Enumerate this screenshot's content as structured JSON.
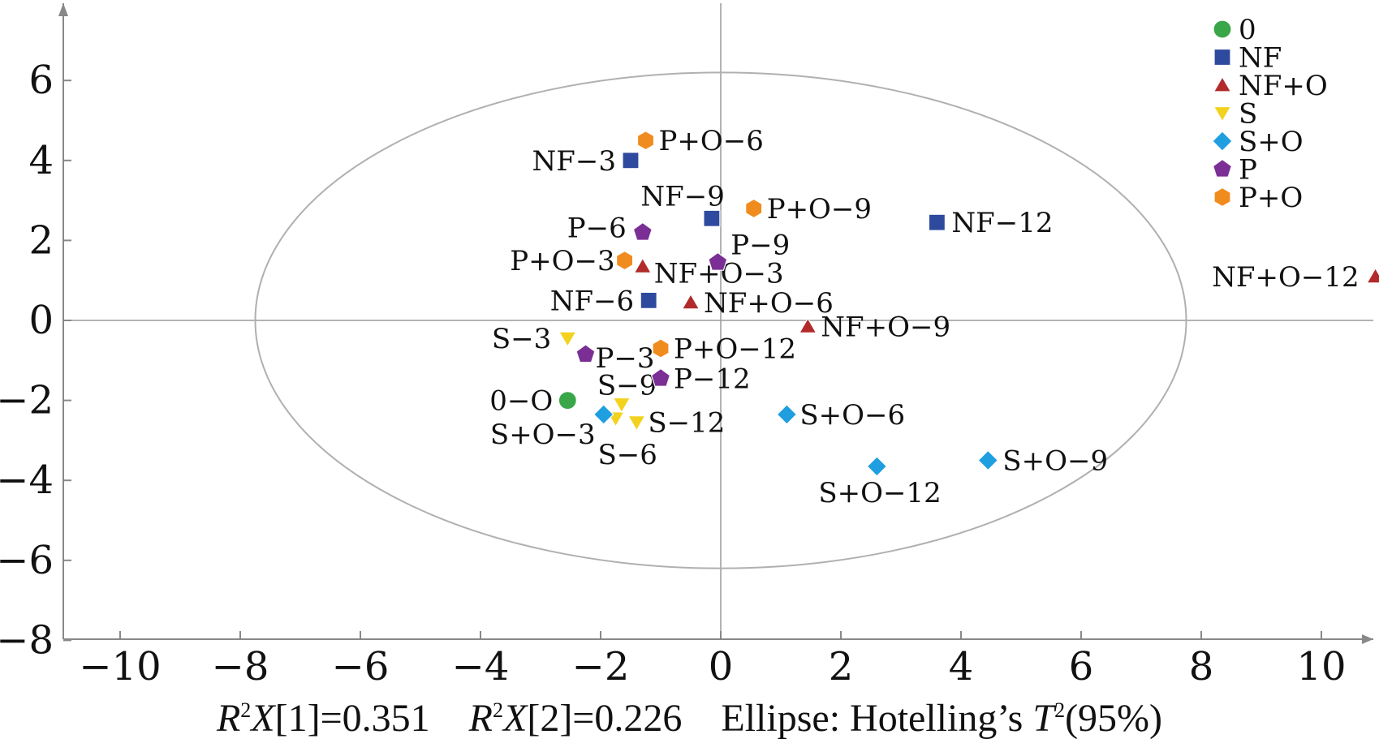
{
  "chart_data": {
    "type": "scatter",
    "x_ticks": [
      "−10",
      "−8",
      "−6",
      "−4",
      "−2",
      "0",
      "2",
      "4",
      "6",
      "8",
      "10"
    ],
    "y_ticks": [
      "6",
      "4",
      "2",
      "0",
      "−2",
      "−4",
      "−6",
      "−8"
    ],
    "xlim": [
      -11,
      11
    ],
    "ylim": [
      -8,
      8
    ],
    "ellipse": {
      "rx": 7.75,
      "ry": 6.2
    },
    "series": [
      {
        "name": "0",
        "marker": "circle",
        "color": "#3aa64a",
        "points": [
          {
            "label": "0−O",
            "x": -2.55,
            "y": -2.0
          }
        ]
      },
      {
        "name": "NF",
        "marker": "square",
        "color": "#2e4a9e",
        "points": [
          {
            "label": "NF−3",
            "x": -1.5,
            "y": 4.0
          },
          {
            "label": "NF−6",
            "x": -1.2,
            "y": 0.5
          },
          {
            "label": "NF−9",
            "x": -0.15,
            "y": 2.55
          },
          {
            "label": "NF−12",
            "x": 3.6,
            "y": 2.45
          }
        ]
      },
      {
        "name": "NF+O",
        "marker": "triangle-up",
        "color": "#b22a2a",
        "points": [
          {
            "label": "NF+O−3",
            "x": -1.3,
            "y": 1.35
          },
          {
            "label": "NF+O−6",
            "x": -0.5,
            "y": 0.45
          },
          {
            "label": "NF+O−9",
            "x": 1.45,
            "y": -0.15
          },
          {
            "label": "NF+O−12",
            "x": 10.9,
            "y": 1.1
          }
        ]
      },
      {
        "name": "S",
        "marker": "triangle-down",
        "color": "#f2d21e",
        "points": [
          {
            "label": "S−3",
            "x": -2.55,
            "y": -0.45
          },
          {
            "label": "S−6",
            "x": -1.75,
            "y": -2.45
          },
          {
            "label": "S−9",
            "x": -1.65,
            "y": -2.1
          },
          {
            "label": "S−12",
            "x": -1.4,
            "y": -2.55
          }
        ]
      },
      {
        "name": "S+O",
        "marker": "diamond",
        "color": "#1f9ee0",
        "points": [
          {
            "label": "S+O−3",
            "x": -1.95,
            "y": -2.35
          },
          {
            "label": "S+O−6",
            "x": 1.1,
            "y": -2.35
          },
          {
            "label": "S+O−9",
            "x": 4.45,
            "y": -3.5
          },
          {
            "label": "S+O−12",
            "x": 2.6,
            "y": -3.65
          }
        ]
      },
      {
        "name": "P",
        "marker": "pentagon",
        "color": "#7b2f95",
        "points": [
          {
            "label": "P−3",
            "x": -2.25,
            "y": -0.85
          },
          {
            "label": "P−6",
            "x": -1.3,
            "y": 2.2
          },
          {
            "label": "P−9",
            "x": -0.05,
            "y": 1.45
          },
          {
            "label": "P−12",
            "x": -1.0,
            "y": -1.45
          }
        ]
      },
      {
        "name": "P+O",
        "marker": "hexagon",
        "color": "#f08c1e",
        "points": [
          {
            "label": "P+O−3",
            "x": -1.6,
            "y": 1.5
          },
          {
            "label": "P+O−6",
            "x": -1.25,
            "y": 4.5
          },
          {
            "label": "P+O−9",
            "x": 0.55,
            "y": 2.8
          },
          {
            "label": "P+O−12",
            "x": -1.0,
            "y": -0.7
          }
        ]
      }
    ]
  },
  "footer": {
    "r2x1_base": "R",
    "r2x1_sup": "2",
    "r2x1_rest": "X",
    "r2x1_value": "[1]=0.351",
    "r2x2_base": "R",
    "r2x2_sup": "2",
    "r2x2_rest": "X",
    "r2x2_value": "[2]=0.226",
    "ellipse_prefix": "Ellipse: Hotelling’s ",
    "ellipse_t": "T",
    "ellipse_sup": "2",
    "ellipse_suffix": "(95%)"
  }
}
